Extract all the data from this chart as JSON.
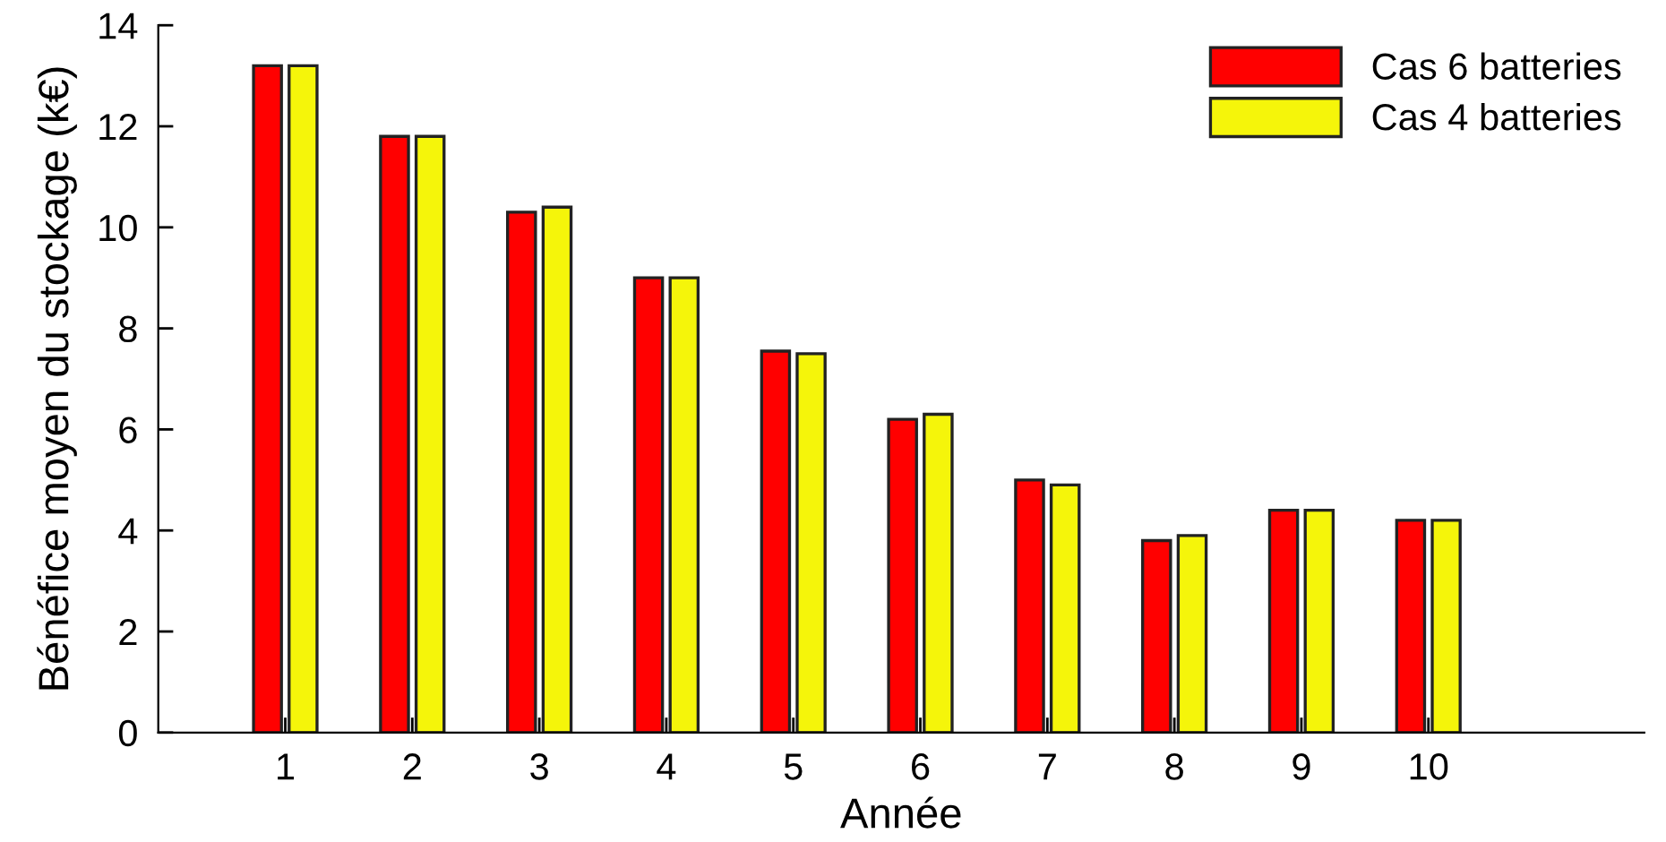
{
  "chart_data": {
    "type": "bar",
    "xlabel": "Année",
    "ylabel": "Bénéfice moyen du stockage (k€)",
    "x": [
      1,
      2,
      3,
      4,
      5,
      6,
      7,
      8,
      9,
      10
    ],
    "series": [
      {
        "name": "Cas 6 batteries",
        "color": "#ff0000",
        "values": [
          13.2,
          11.8,
          10.3,
          9.0,
          7.55,
          6.2,
          5.0,
          3.8,
          4.4,
          4.2
        ]
      },
      {
        "name": "Cas 4 batteries",
        "color": "#f5f50a",
        "values": [
          13.2,
          11.8,
          10.4,
          9.0,
          7.5,
          6.3,
          4.9,
          3.9,
          4.4,
          4.2
        ]
      }
    ],
    "xlim": [
      0,
      11.7
    ],
    "xticks": [
      1,
      2,
      3,
      4,
      5,
      6,
      7,
      8,
      9,
      10
    ],
    "ylim": [
      0,
      14
    ],
    "yticks": [
      0,
      2,
      4,
      6,
      8,
      10,
      12,
      14
    ],
    "grid": false,
    "legend": "top right"
  }
}
